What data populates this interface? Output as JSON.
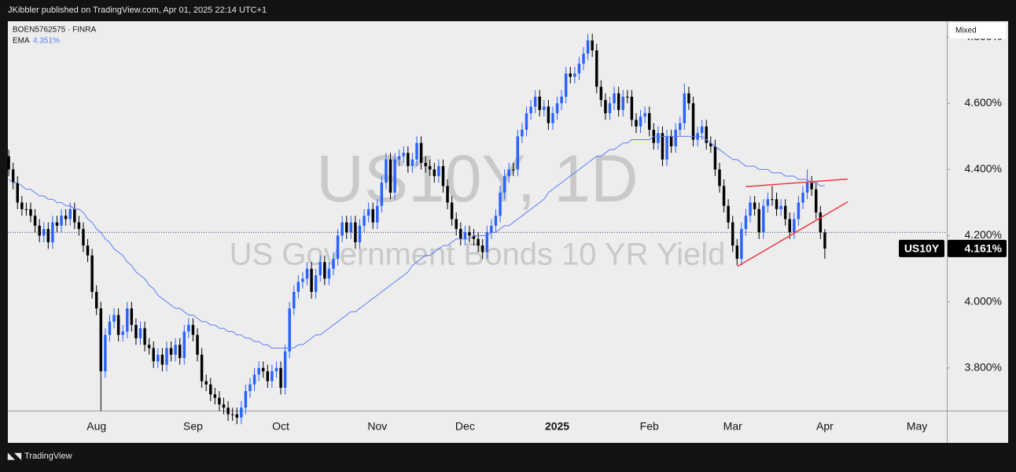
{
  "header": {
    "publisher": "JKibbler published on TradingView.com, Apr 01, 2025 22:14 UTC+1",
    "brand": "TradingView",
    "scale_mode": "Mixed"
  },
  "chart_data": {
    "type": "candlestick",
    "symbol_legend": "BOEN5762575 · FINRA",
    "watermark_title": "US10Y, 1D",
    "watermark_subtitle": "US Government Bonds 10 YR Yield",
    "up_color": "#2962ff",
    "down_color": "#000000",
    "ema_name": "EMA",
    "ema_value_label": "4.351%",
    "ema_color": "#5b7ef5",
    "symbol_tag": "US10Y",
    "last_price_label": "4.161%",
    "prev_close_line": true,
    "xlim": [
      -0.2,
      213.8
    ],
    "ylim": [
      3.671,
      4.848
    ],
    "yticks": [
      {
        "value": 3.8,
        "label": "3.800%"
      },
      {
        "value": 4.0,
        "label": "4.000%"
      },
      {
        "value": 4.2,
        "label": "4.200%"
      },
      {
        "value": 4.4,
        "label": "4.400%"
      },
      {
        "value": 4.6,
        "label": "4.600%"
      },
      {
        "value": 4.8,
        "label": "4.800%"
      }
    ],
    "xticks": [
      {
        "value": 20,
        "label": "Aug"
      },
      {
        "value": 42,
        "label": "Sep"
      },
      {
        "value": 62,
        "label": "Oct"
      },
      {
        "value": 84,
        "label": "Nov"
      },
      {
        "value": 104,
        "label": "Dec"
      },
      {
        "value": 125,
        "label": "2025",
        "bold": true
      },
      {
        "value": 146,
        "label": "Feb"
      },
      {
        "value": 165,
        "label": "Mar"
      },
      {
        "value": 186,
        "label": "Apr"
      },
      {
        "value": 207,
        "label": "May"
      }
    ],
    "trendlines": [
      {
        "color": "#f23645",
        "x": [
          168,
          191.2
        ],
        "y": [
          4.348,
          4.371
        ]
      },
      {
        "color": "#f23645",
        "x": [
          166.1,
          191.2
        ],
        "y": [
          4.107,
          4.302
        ]
      }
    ],
    "ohlc": [
      [
        4.44,
        4.46,
        4.38,
        4.4
      ],
      [
        4.4,
        4.42,
        4.34,
        4.36
      ],
      [
        4.36,
        4.38,
        4.28,
        4.3
      ],
      [
        4.3,
        4.32,
        4.26,
        4.28
      ],
      [
        4.28,
        4.3,
        4.26,
        4.28
      ],
      [
        4.28,
        4.3,
        4.24,
        4.26
      ],
      [
        4.26,
        4.28,
        4.21,
        4.23
      ],
      [
        4.23,
        4.25,
        4.18,
        4.2
      ],
      [
        4.2,
        4.24,
        4.18,
        4.22
      ],
      [
        4.22,
        4.24,
        4.16,
        4.18
      ],
      [
        4.18,
        4.26,
        4.16,
        4.24
      ],
      [
        4.24,
        4.26,
        4.21,
        4.23
      ],
      [
        4.23,
        4.28,
        4.21,
        4.26
      ],
      [
        4.26,
        4.28,
        4.23,
        4.25
      ],
      [
        4.25,
        4.3,
        4.23,
        4.28
      ],
      [
        4.28,
        4.3,
        4.22,
        4.24
      ],
      [
        4.24,
        4.26,
        4.2,
        4.22
      ],
      [
        4.22,
        4.24,
        4.15,
        4.17
      ],
      [
        4.17,
        4.19,
        4.12,
        4.14
      ],
      [
        4.14,
        4.16,
        4.01,
        4.03
      ],
      [
        4.03,
        4.05,
        3.96,
        3.98
      ],
      [
        3.98,
        4.0,
        3.67,
        3.79
      ],
      [
        3.79,
        3.92,
        3.77,
        3.9
      ],
      [
        3.9,
        3.96,
        3.88,
        3.94
      ],
      [
        3.94,
        3.98,
        3.92,
        3.96
      ],
      [
        3.96,
        3.98,
        3.88,
        3.9
      ],
      [
        3.9,
        3.93,
        3.88,
        3.91
      ],
      [
        3.91,
        4.0,
        3.89,
        3.98
      ],
      [
        3.98,
        4.0,
        3.91,
        3.93
      ],
      [
        3.93,
        3.95,
        3.87,
        3.89
      ],
      [
        3.89,
        3.94,
        3.87,
        3.92
      ],
      [
        3.92,
        3.94,
        3.85,
        3.87
      ],
      [
        3.87,
        3.89,
        3.84,
        3.86
      ],
      [
        3.86,
        3.88,
        3.8,
        3.82
      ],
      [
        3.82,
        3.86,
        3.8,
        3.84
      ],
      [
        3.84,
        3.86,
        3.79,
        3.81
      ],
      [
        3.81,
        3.88,
        3.79,
        3.86
      ],
      [
        3.86,
        3.88,
        3.82,
        3.84
      ],
      [
        3.84,
        3.89,
        3.82,
        3.87
      ],
      [
        3.87,
        3.89,
        3.81,
        3.83
      ],
      [
        3.83,
        3.93,
        3.81,
        3.91
      ],
      [
        3.91,
        3.95,
        3.89,
        3.93
      ],
      [
        3.93,
        3.95,
        3.88,
        3.9
      ],
      [
        3.9,
        3.92,
        3.82,
        3.84
      ],
      [
        3.84,
        3.86,
        3.74,
        3.76
      ],
      [
        3.76,
        3.78,
        3.73,
        3.75
      ],
      [
        3.75,
        3.77,
        3.7,
        3.72
      ],
      [
        3.72,
        3.74,
        3.69,
        3.71
      ],
      [
        3.71,
        3.73,
        3.67,
        3.69
      ],
      [
        3.69,
        3.71,
        3.66,
        3.68
      ],
      [
        3.68,
        3.7,
        3.64,
        3.66
      ],
      [
        3.66,
        3.68,
        3.64,
        3.66
      ],
      [
        3.66,
        3.68,
        3.63,
        3.65
      ],
      [
        3.65,
        3.7,
        3.63,
        3.68
      ],
      [
        3.68,
        3.75,
        3.66,
        3.73
      ],
      [
        3.73,
        3.77,
        3.71,
        3.75
      ],
      [
        3.75,
        3.8,
        3.73,
        3.78
      ],
      [
        3.78,
        3.82,
        3.76,
        3.8
      ],
      [
        3.8,
        3.82,
        3.77,
        3.79
      ],
      [
        3.79,
        3.81,
        3.74,
        3.76
      ],
      [
        3.76,
        3.81,
        3.74,
        3.79
      ],
      [
        3.79,
        3.82,
        3.77,
        3.8
      ],
      [
        3.8,
        3.82,
        3.72,
        3.74
      ],
      [
        3.74,
        3.87,
        3.72,
        3.85
      ],
      [
        3.85,
        4.0,
        3.83,
        3.98
      ],
      [
        3.98,
        4.05,
        3.96,
        4.03
      ],
      [
        4.03,
        4.08,
        4.01,
        4.06
      ],
      [
        4.06,
        4.09,
        4.04,
        4.07
      ],
      [
        4.07,
        4.12,
        4.05,
        4.1
      ],
      [
        4.1,
        4.12,
        4.01,
        4.03
      ],
      [
        4.03,
        4.1,
        4.01,
        4.08
      ],
      [
        4.08,
        4.14,
        4.06,
        4.12
      ],
      [
        4.12,
        4.14,
        4.05,
        4.07
      ],
      [
        4.07,
        4.12,
        4.05,
        4.1
      ],
      [
        4.1,
        4.15,
        4.08,
        4.13
      ],
      [
        4.13,
        4.22,
        4.11,
        4.2
      ],
      [
        4.2,
        4.26,
        4.18,
        4.24
      ],
      [
        4.24,
        4.26,
        4.19,
        4.21
      ],
      [
        4.21,
        4.26,
        4.19,
        4.24
      ],
      [
        4.24,
        4.26,
        4.16,
        4.18
      ],
      [
        4.18,
        4.25,
        4.16,
        4.23
      ],
      [
        4.23,
        4.28,
        4.21,
        4.26
      ],
      [
        4.26,
        4.3,
        4.24,
        4.28
      ],
      [
        4.28,
        4.3,
        4.22,
        4.24
      ],
      [
        4.24,
        4.31,
        4.22,
        4.29
      ],
      [
        4.29,
        4.38,
        4.27,
        4.36
      ],
      [
        4.36,
        4.45,
        4.34,
        4.43
      ],
      [
        4.43,
        4.45,
        4.31,
        4.33
      ],
      [
        4.33,
        4.45,
        4.31,
        4.43
      ],
      [
        4.43,
        4.46,
        4.41,
        4.44
      ],
      [
        4.44,
        4.47,
        4.42,
        4.45
      ],
      [
        4.45,
        4.47,
        4.39,
        4.41
      ],
      [
        4.41,
        4.45,
        4.39,
        4.43
      ],
      [
        4.43,
        4.5,
        4.41,
        4.48
      ],
      [
        4.48,
        4.5,
        4.4,
        4.42
      ],
      [
        4.42,
        4.44,
        4.39,
        4.41
      ],
      [
        4.41,
        4.43,
        4.38,
        4.4
      ],
      [
        4.4,
        4.42,
        4.36,
        4.38
      ],
      [
        4.38,
        4.43,
        4.36,
        4.41
      ],
      [
        4.41,
        4.43,
        4.33,
        4.35
      ],
      [
        4.35,
        4.37,
        4.28,
        4.3
      ],
      [
        4.3,
        4.32,
        4.23,
        4.25
      ],
      [
        4.25,
        4.27,
        4.2,
        4.22
      ],
      [
        4.22,
        4.24,
        4.17,
        4.19
      ],
      [
        4.19,
        4.23,
        4.17,
        4.21
      ],
      [
        4.21,
        4.23,
        4.18,
        4.2
      ],
      [
        4.2,
        4.22,
        4.17,
        4.19
      ],
      [
        4.19,
        4.21,
        4.15,
        4.17
      ],
      [
        4.17,
        4.19,
        4.13,
        4.15
      ],
      [
        4.15,
        4.23,
        4.13,
        4.21
      ],
      [
        4.21,
        4.25,
        4.19,
        4.23
      ],
      [
        4.23,
        4.28,
        4.21,
        4.26
      ],
      [
        4.26,
        4.35,
        4.24,
        4.33
      ],
      [
        4.33,
        4.4,
        4.31,
        4.38
      ],
      [
        4.38,
        4.42,
        4.36,
        4.4
      ],
      [
        4.4,
        4.42,
        4.38,
        4.4
      ],
      [
        4.4,
        4.52,
        4.38,
        4.5
      ],
      [
        4.5,
        4.54,
        4.48,
        4.52
      ],
      [
        4.52,
        4.59,
        4.5,
        4.57
      ],
      [
        4.57,
        4.61,
        4.55,
        4.59
      ],
      [
        4.59,
        4.64,
        4.57,
        4.62
      ],
      [
        4.62,
        4.64,
        4.56,
        4.58
      ],
      [
        4.58,
        4.61,
        4.56,
        4.59
      ],
      [
        4.59,
        4.61,
        4.52,
        4.54
      ],
      [
        4.54,
        4.59,
        4.52,
        4.57
      ],
      [
        4.57,
        4.62,
        4.55,
        4.6
      ],
      [
        4.6,
        4.64,
        4.58,
        4.62
      ],
      [
        4.62,
        4.71,
        4.6,
        4.69
      ],
      [
        4.69,
        4.71,
        4.66,
        4.68
      ],
      [
        4.68,
        4.71,
        4.66,
        4.69
      ],
      [
        4.69,
        4.74,
        4.67,
        4.72
      ],
      [
        4.72,
        4.77,
        4.7,
        4.75
      ],
      [
        4.75,
        4.81,
        4.73,
        4.79
      ],
      [
        4.79,
        4.81,
        4.74,
        4.76
      ],
      [
        4.76,
        4.78,
        4.63,
        4.65
      ],
      [
        4.65,
        4.67,
        4.59,
        4.61
      ],
      [
        4.61,
        4.63,
        4.55,
        4.57
      ],
      [
        4.57,
        4.62,
        4.55,
        4.6
      ],
      [
        4.6,
        4.65,
        4.58,
        4.63
      ],
      [
        4.63,
        4.65,
        4.56,
        4.58
      ],
      [
        4.58,
        4.64,
        4.56,
        4.62
      ],
      [
        4.62,
        4.64,
        4.6,
        4.62
      ],
      [
        4.62,
        4.64,
        4.53,
        4.55
      ],
      [
        4.55,
        4.57,
        4.51,
        4.53
      ],
      [
        4.53,
        4.58,
        4.51,
        4.56
      ],
      [
        4.56,
        4.59,
        4.54,
        4.57
      ],
      [
        4.57,
        4.59,
        4.5,
        4.52
      ],
      [
        4.52,
        4.54,
        4.46,
        4.48
      ],
      [
        4.48,
        4.53,
        4.46,
        4.51
      ],
      [
        4.51,
        4.53,
        4.41,
        4.43
      ],
      [
        4.43,
        4.52,
        4.41,
        4.5
      ],
      [
        4.5,
        4.52,
        4.45,
        4.47
      ],
      [
        4.47,
        4.54,
        4.45,
        4.52
      ],
      [
        4.52,
        4.56,
        4.5,
        4.54
      ],
      [
        4.54,
        4.66,
        4.52,
        4.63
      ],
      [
        4.63,
        4.65,
        4.58,
        4.6
      ],
      [
        4.6,
        4.62,
        4.47,
        4.49
      ],
      [
        4.49,
        4.53,
        4.47,
        4.51
      ],
      [
        4.51,
        4.55,
        4.49,
        4.53
      ],
      [
        4.53,
        4.55,
        4.46,
        4.48
      ],
      [
        4.48,
        4.5,
        4.45,
        4.47
      ],
      [
        4.47,
        4.49,
        4.38,
        4.4
      ],
      [
        4.4,
        4.42,
        4.33,
        4.35
      ],
      [
        4.35,
        4.37,
        4.27,
        4.29
      ],
      [
        4.29,
        4.31,
        4.22,
        4.24
      ],
      [
        4.24,
        4.26,
        4.15,
        4.17
      ],
      [
        4.17,
        4.19,
        4.11,
        4.13
      ],
      [
        4.13,
        4.24,
        4.11,
        4.22
      ],
      [
        4.22,
        4.28,
        4.2,
        4.26
      ],
      [
        4.26,
        4.32,
        4.24,
        4.3
      ],
      [
        4.3,
        4.32,
        4.26,
        4.28
      ],
      [
        4.28,
        4.3,
        4.19,
        4.21
      ],
      [
        4.21,
        4.31,
        4.19,
        4.29
      ],
      [
        4.29,
        4.33,
        4.27,
        4.31
      ],
      [
        4.31,
        4.35,
        4.29,
        4.31
      ],
      [
        4.31,
        4.33,
        4.26,
        4.28
      ],
      [
        4.28,
        4.31,
        4.26,
        4.29
      ],
      [
        4.29,
        4.31,
        4.23,
        4.25
      ],
      [
        4.25,
        4.27,
        4.19,
        4.21
      ],
      [
        4.21,
        4.27,
        4.19,
        4.25
      ],
      [
        4.25,
        4.32,
        4.23,
        4.3
      ],
      [
        4.3,
        4.35,
        4.28,
        4.33
      ],
      [
        4.33,
        4.4,
        4.31,
        4.36
      ],
      [
        4.36,
        4.38,
        4.32,
        4.34
      ],
      [
        4.34,
        4.36,
        4.25,
        4.27
      ],
      [
        4.27,
        4.29,
        4.19,
        4.21
      ],
      [
        4.21,
        4.22,
        4.13,
        4.161
      ]
    ],
    "ema": [
      4.37,
      4.36,
      4.36,
      4.35,
      4.34,
      4.34,
      4.33,
      4.32,
      4.32,
      4.31,
      4.31,
      4.3,
      4.3,
      4.29,
      4.29,
      4.28,
      4.28,
      4.27,
      4.25,
      4.24,
      4.22,
      4.21,
      4.19,
      4.18,
      4.16,
      4.15,
      4.14,
      4.12,
      4.11,
      4.09,
      4.08,
      4.07,
      4.05,
      4.04,
      4.02,
      4.01,
      4.0,
      3.99,
      3.98,
      3.98,
      3.97,
      3.96,
      3.96,
      3.95,
      3.94,
      3.94,
      3.93,
      3.93,
      3.92,
      3.92,
      3.91,
      3.91,
      3.9,
      3.9,
      3.89,
      3.89,
      3.88,
      3.88,
      3.87,
      3.87,
      3.86,
      3.86,
      3.86,
      3.86,
      3.86,
      3.86,
      3.87,
      3.87,
      3.88,
      3.89,
      3.9,
      3.9,
      3.91,
      3.92,
      3.93,
      3.94,
      3.95,
      3.96,
      3.97,
      3.97,
      3.98,
      3.99,
      4.0,
      4.01,
      4.02,
      4.03,
      4.04,
      4.05,
      4.06,
      4.07,
      4.08,
      4.09,
      4.11,
      4.12,
      4.13,
      4.14,
      4.14,
      4.15,
      4.16,
      4.17,
      4.17,
      4.18,
      4.19,
      4.19,
      4.19,
      4.19,
      4.2,
      4.2,
      4.2,
      4.2,
      4.21,
      4.21,
      4.22,
      4.23,
      4.23,
      4.24,
      4.25,
      4.26,
      4.27,
      4.28,
      4.29,
      4.3,
      4.31,
      4.33,
      4.34,
      4.35,
      4.36,
      4.37,
      4.38,
      4.39,
      4.4,
      4.41,
      4.42,
      4.43,
      4.44,
      4.44,
      4.45,
      4.46,
      4.46,
      4.47,
      4.48,
      4.48,
      4.49,
      4.49,
      4.49,
      4.49,
      4.49,
      4.5,
      4.5,
      4.5,
      4.5,
      4.5,
      4.5,
      4.5,
      4.5,
      4.5,
      4.5,
      4.5,
      4.5,
      4.49,
      4.48,
      4.47,
      4.46,
      4.45,
      4.44,
      4.43,
      4.43,
      4.42,
      4.41,
      4.41,
      4.41,
      4.4,
      4.4,
      4.4,
      4.39,
      4.39,
      4.39,
      4.38,
      4.38,
      4.38,
      4.37,
      4.37,
      4.37,
      4.36,
      4.36,
      4.35,
      4.351
    ]
  }
}
